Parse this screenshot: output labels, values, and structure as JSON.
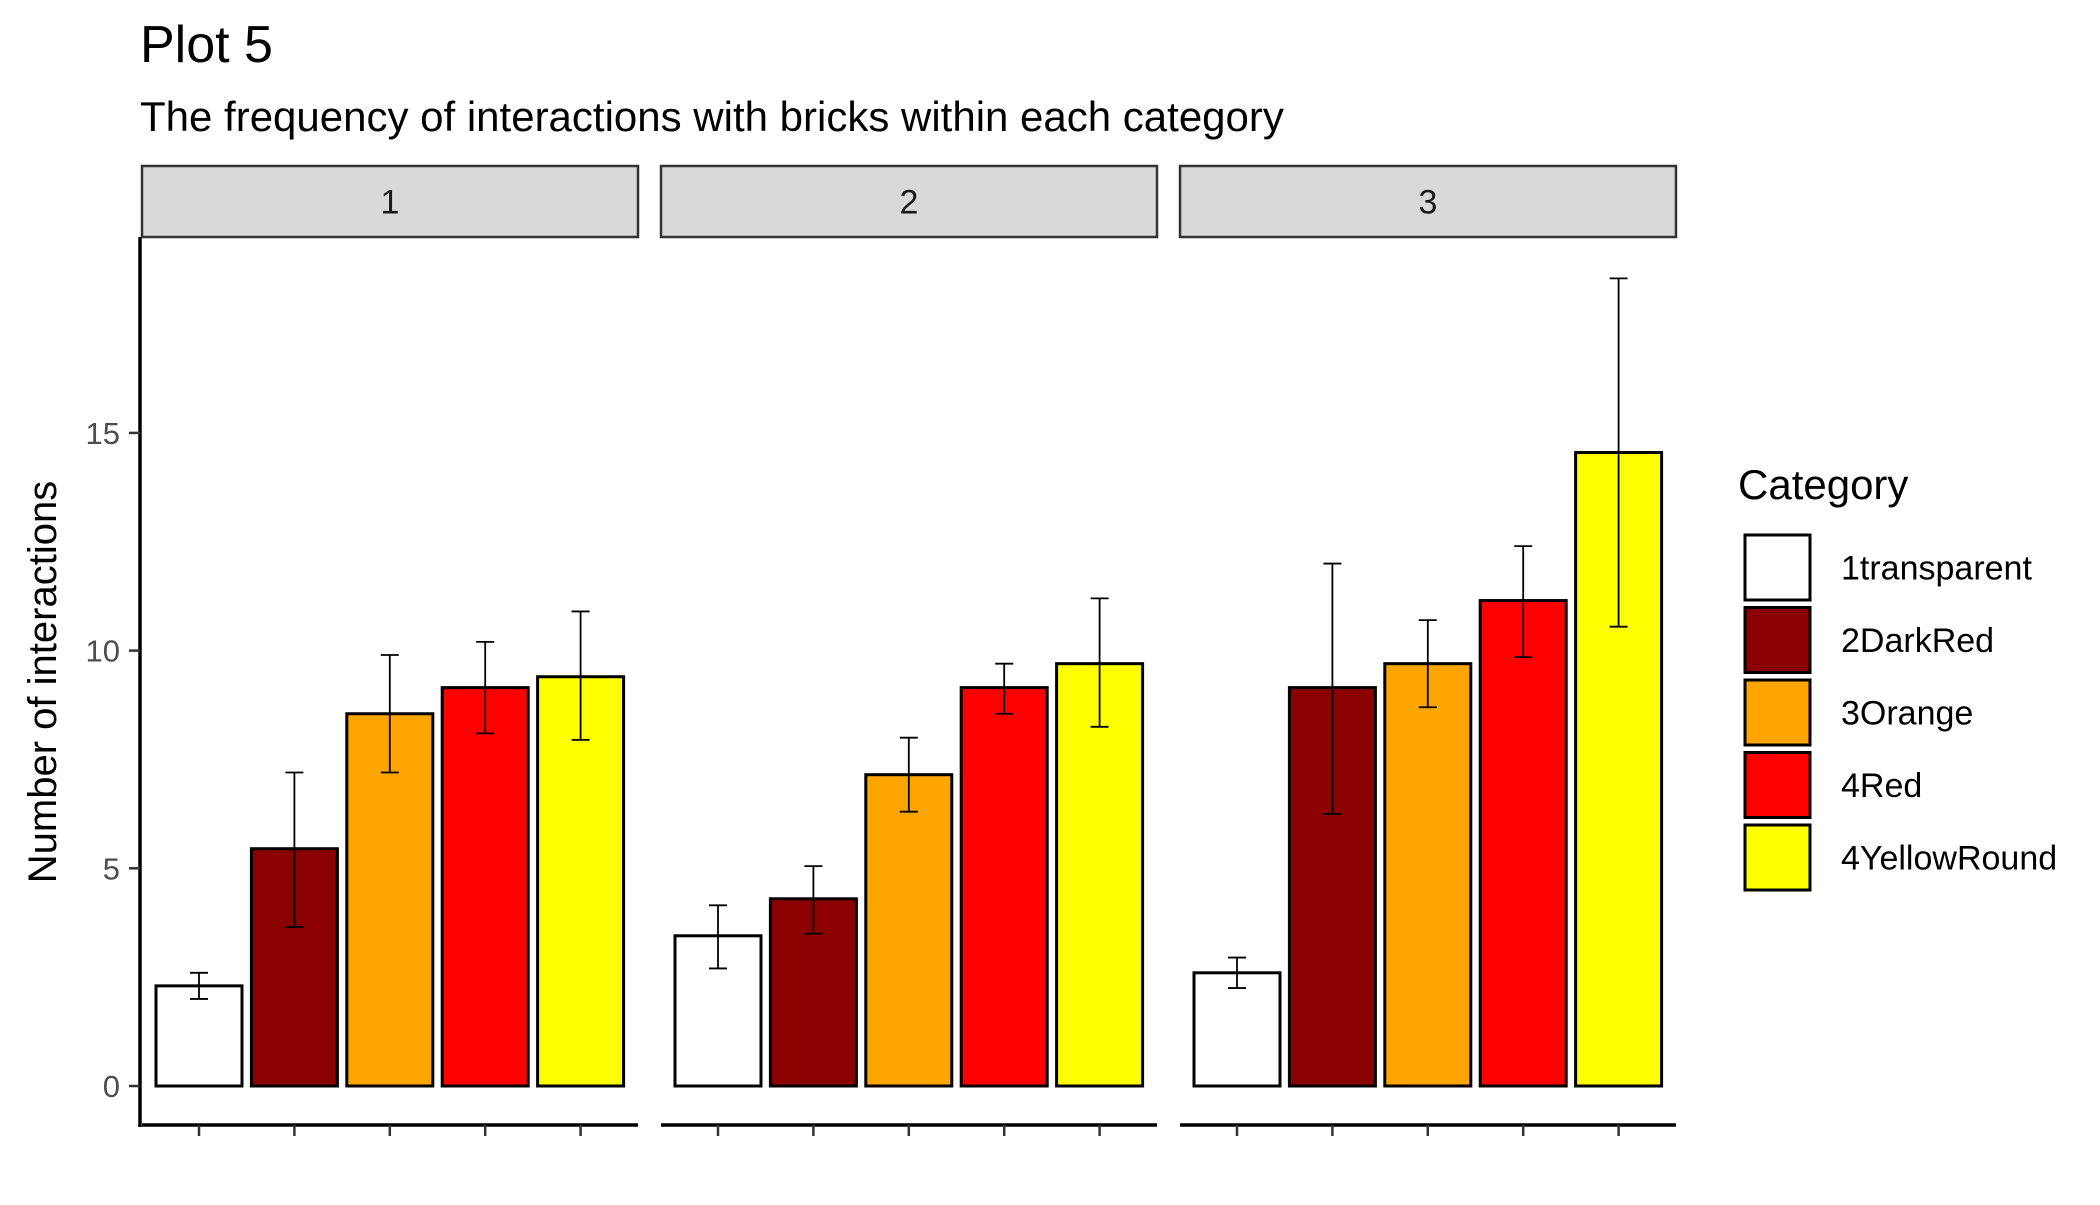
{
  "chart_data": {
    "type": "bar",
    "title": "Plot 5",
    "subtitle": "The frequency of interactions with bricks within each category",
    "xlabel": "",
    "ylabel": "Number of interactions",
    "ylim": [
      0,
      19.5
    ],
    "yticks": [
      0,
      5,
      10,
      15
    ],
    "grid": false,
    "legend": {
      "title": "Category",
      "placement": "right",
      "entries": [
        {
          "name": "1transparent",
          "color": "#FFFFFF"
        },
        {
          "name": "2DarkRed",
          "color": "#8B0000"
        },
        {
          "name": "3Orange",
          "color": "#FFA500"
        },
        {
          "name": "4Red",
          "color": "#FF0000"
        },
        {
          "name": "4YellowRound",
          "color": "#FFFF00"
        }
      ]
    },
    "facets": [
      {
        "label": "1",
        "bars": [
          {
            "category": "1transparent",
            "value": 2.3,
            "err_low": 2.0,
            "err_high": 2.6
          },
          {
            "category": "2DarkRed",
            "value": 5.45,
            "err_low": 3.65,
            "err_high": 7.2
          },
          {
            "category": "3Orange",
            "value": 8.55,
            "err_low": 7.2,
            "err_high": 9.9
          },
          {
            "category": "4Red",
            "value": 9.15,
            "err_low": 8.1,
            "err_high": 10.2
          },
          {
            "category": "4YellowRound",
            "value": 9.4,
            "err_low": 7.95,
            "err_high": 10.9
          }
        ]
      },
      {
        "label": "2",
        "bars": [
          {
            "category": "1transparent",
            "value": 3.45,
            "err_low": 2.7,
            "err_high": 4.15
          },
          {
            "category": "2DarkRed",
            "value": 4.3,
            "err_low": 3.5,
            "err_high": 5.05
          },
          {
            "category": "3Orange",
            "value": 7.15,
            "err_low": 6.3,
            "err_high": 8.0
          },
          {
            "category": "4Red",
            "value": 9.15,
            "err_low": 8.55,
            "err_high": 9.7
          },
          {
            "category": "4YellowRound",
            "value": 9.7,
            "err_low": 8.25,
            "err_high": 11.2
          }
        ]
      },
      {
        "label": "3",
        "bars": [
          {
            "category": "1transparent",
            "value": 2.6,
            "err_low": 2.25,
            "err_high": 2.95
          },
          {
            "category": "2DarkRed",
            "value": 9.15,
            "err_low": 6.25,
            "err_high": 12.0
          },
          {
            "category": "3Orange",
            "value": 9.7,
            "err_low": 8.7,
            "err_high": 10.7
          },
          {
            "category": "4Red",
            "value": 11.15,
            "err_low": 9.85,
            "err_high": 12.4
          },
          {
            "category": "4YellowRound",
            "value": 14.55,
            "err_low": 10.55,
            "err_high": 18.55
          }
        ]
      }
    ]
  }
}
